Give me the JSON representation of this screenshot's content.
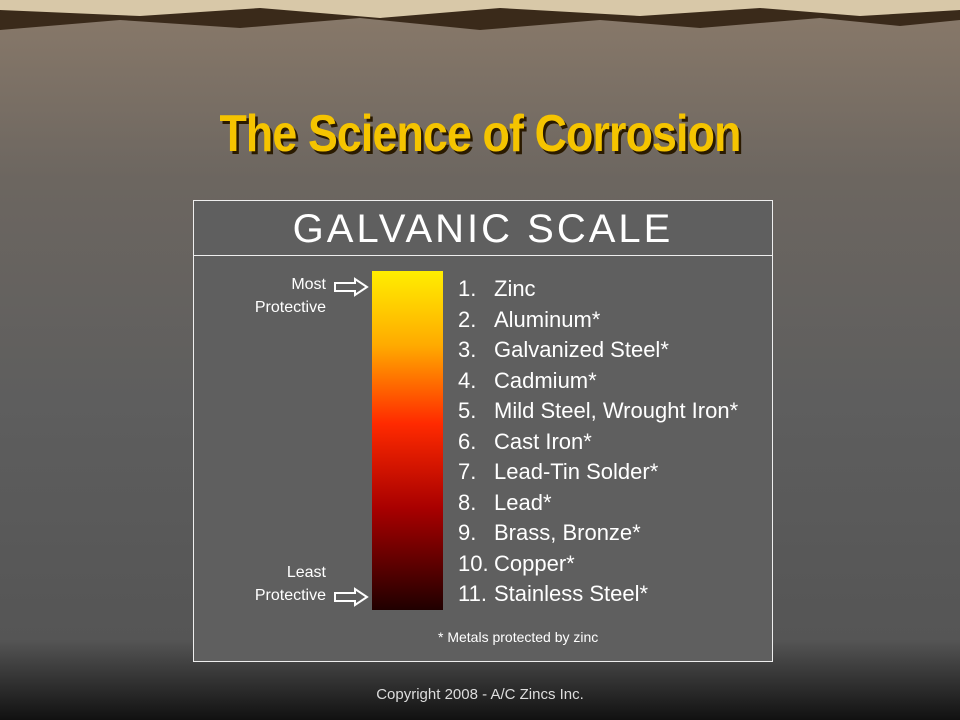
{
  "slide": {
    "title": "The Science of Corrosion",
    "panel": {
      "heading": "GALVANIC SCALE",
      "top_label": [
        "Most",
        "Protective"
      ],
      "bottom_label": [
        "Least",
        "Protective"
      ],
      "items": [
        {
          "number": "1.",
          "text": "Zinc"
        },
        {
          "number": "2.",
          "text": "Aluminum*"
        },
        {
          "number": "3.",
          "text": "Galvanized Steel*"
        },
        {
          "number": "4.",
          "text": "Cadmium*"
        },
        {
          "number": "5.",
          "text": "Mild Steel, Wrought Iron*"
        },
        {
          "number": "6.",
          "text": "Cast Iron*"
        },
        {
          "number": "7.",
          "text": "Lead-Tin Solder*"
        },
        {
          "number": "8.",
          "text": "Lead*"
        },
        {
          "number": "9.",
          "text": "Brass, Bronze*"
        },
        {
          "number": "10.",
          "text": "Copper*"
        },
        {
          "number": "11.",
          "text": "Stainless Steel*"
        }
      ],
      "footnote": "* Metals protected by zinc"
    },
    "copyright": "Copyright 2008 - A/C Zincs Inc."
  }
}
